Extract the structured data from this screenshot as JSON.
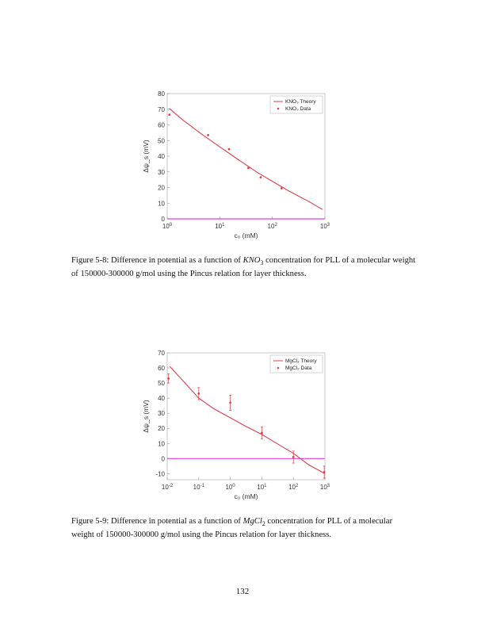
{
  "chart_data": [
    {
      "type": "line",
      "xscale": "log",
      "x_tick_labels": [
        "10^0",
        "10^1",
        "10^2",
        "10^3"
      ],
      "x_tick_values": [
        1,
        10,
        100,
        1000
      ],
      "y_tick_labels": [
        "0",
        "10",
        "20",
        "30",
        "40",
        "50",
        "60",
        "70",
        "80"
      ],
      "y_tick_values": [
        0,
        10,
        20,
        30,
        40,
        50,
        60,
        70,
        80
      ],
      "xlim": [
        1,
        1000
      ],
      "ylim": [
        0,
        80
      ],
      "xlabel": "c₀ (mM)",
      "ylabel": "Δψ_s (mV)",
      "legend": {
        "position": "top-right",
        "entries": [
          "KNO₃ Theory",
          "KNO₃ Data"
        ]
      },
      "series": [
        {
          "name": "KNO₃ Theory",
          "kind": "line",
          "color": "#e0404a",
          "x": [
            1.1,
            2,
            5,
            10,
            20,
            50,
            100,
            200,
            500,
            900
          ],
          "y": [
            70.5,
            63,
            53,
            46,
            39,
            30,
            24,
            18,
            11,
            6
          ]
        },
        {
          "name": "KNO₃ Data",
          "kind": "points",
          "color": "#e0404a",
          "x": [
            1.1,
            6,
            15,
            35,
            60,
            150
          ],
          "y": [
            66.5,
            53.5,
            44.5,
            32.5,
            26.5,
            19.5
          ]
        }
      ],
      "baseline": {
        "y": 0,
        "color": "#e040e0"
      }
    },
    {
      "type": "line",
      "xscale": "log",
      "x_tick_labels": [
        "10^-2",
        "10^-1",
        "10^0",
        "10^1",
        "10^2",
        "10^3"
      ],
      "x_tick_values": [
        0.01,
        0.1,
        1,
        10,
        100,
        1000
      ],
      "y_tick_labels": [
        "-10",
        "0",
        "10",
        "20",
        "30",
        "40",
        "50",
        "60",
        "70"
      ],
      "y_tick_values": [
        -10,
        0,
        10,
        20,
        30,
        40,
        50,
        60,
        70
      ],
      "xlim": [
        0.01,
        1000
      ],
      "ylim": [
        -14,
        70
      ],
      "xlabel": "c₀ (mM)",
      "ylabel": "Δψ_s (mV)",
      "legend": {
        "position": "top-right",
        "entries": [
          "MgCl₂ Theory",
          "MgCl₂ Data"
        ]
      },
      "series": [
        {
          "name": "MgCl₂ Theory",
          "kind": "line",
          "color": "#e0404a",
          "x": [
            0.012,
            0.03,
            0.1,
            0.3,
            1,
            3,
            10,
            30,
            100,
            300,
            1000
          ],
          "y": [
            61,
            52,
            40,
            33,
            27,
            21.5,
            16,
            10,
            3.5,
            -4,
            -10
          ]
        },
        {
          "name": "MgCl₂ Data",
          "kind": "points",
          "color": "#e0404a",
          "x": [
            0.011,
            0.1,
            1,
            10,
            100,
            950
          ],
          "y": [
            53,
            43,
            37,
            17,
            1,
            -9
          ],
          "err": [
            3,
            4,
            5,
            4,
            4,
            4
          ]
        }
      ],
      "baseline": {
        "y": 0,
        "color": "#e040e0"
      }
    }
  ],
  "figures": [
    {
      "caption_prefix": "Figure 5-8: Difference in potential as a function of ",
      "caption_math": "KNO",
      "caption_math_sub": "3",
      "caption_suffix": " concentration for PLL of a molecular weight of 150000-300000 g/mol using the Pincus relation for layer thickness."
    },
    {
      "caption_prefix": "Figure 5-9: Difference in potential as a function of ",
      "caption_math": "MgCl",
      "caption_math_sub": "2",
      "caption_suffix": " concentration for PLL of a molecular weight of 150000-300000 g/mol using the Pincus relation for layer thickness."
    }
  ],
  "page_number": "132"
}
